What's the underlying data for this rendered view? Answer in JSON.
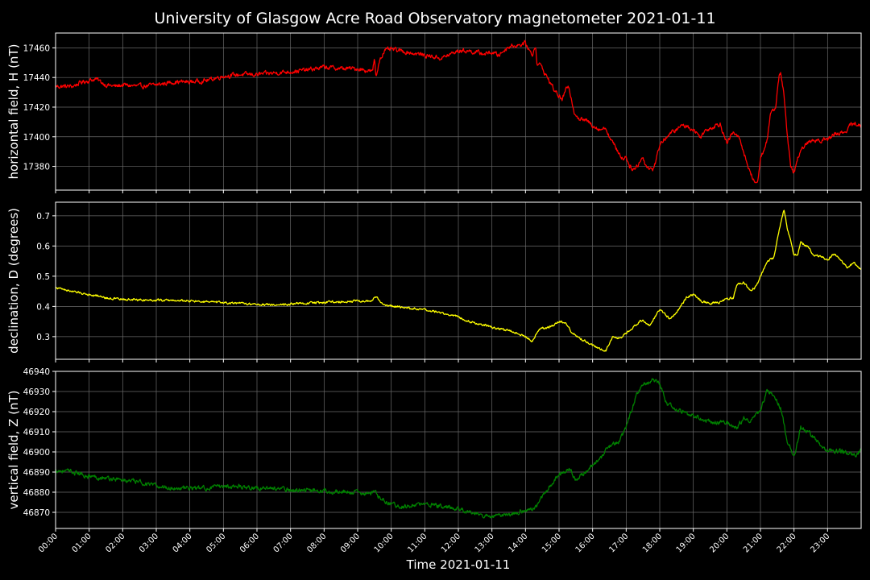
{
  "figure": {
    "title": "University of Glasgow Acre Road Observatory magnetometer 2021-01-11",
    "background": "#000000",
    "text_color": "#ffffff",
    "grid_color": "#6a6a6a"
  },
  "chart_data": [
    {
      "type": "line",
      "name": "horizontal",
      "ylabel": "horizontal field, H (nT)",
      "xlabel": "",
      "color": "#ff0000",
      "xlim": [
        0,
        24
      ],
      "ylim": [
        17364,
        17470
      ],
      "yticks": [
        17380,
        17400,
        17420,
        17440,
        17460
      ],
      "ytick_labels": [
        "17380",
        "17400",
        "17420",
        "17440",
        "17460"
      ],
      "noise": 1.2,
      "x": [
        0,
        0.3,
        0.5,
        0.8,
        1.0,
        1.2,
        1.5,
        1.8,
        2.0,
        2.5,
        3.0,
        3.5,
        4.0,
        4.5,
        5.0,
        5.5,
        6.0,
        6.5,
        7.0,
        7.5,
        8.0,
        8.5,
        9.0,
        9.45,
        9.5,
        9.55,
        9.65,
        9.8,
        10.0,
        10.5,
        11.0,
        11.5,
        12.0,
        12.3,
        12.5,
        12.8,
        13.0,
        13.2,
        13.5,
        13.8,
        14.0,
        14.2,
        14.3,
        14.35,
        14.4,
        14.5,
        14.7,
        14.9,
        15.1,
        15.2,
        15.3,
        15.45,
        15.6,
        15.8,
        16.0,
        16.2,
        16.4,
        16.5,
        16.7,
        16.9,
        17.0,
        17.1,
        17.25,
        17.4,
        17.5,
        17.6,
        17.8,
        17.9,
        18.0,
        18.2,
        18.5,
        18.7,
        19.0,
        19.2,
        19.4,
        19.6,
        19.8,
        20.0,
        20.1,
        20.2,
        20.4,
        20.6,
        20.8,
        20.9,
        21.0,
        21.2,
        21.3,
        21.45,
        21.55,
        21.6,
        21.7,
        21.8,
        21.9,
        22.0,
        22.1,
        22.3,
        22.5,
        22.7,
        23.0,
        23.2,
        23.5,
        23.7,
        23.9,
        24.0
      ],
      "values": [
        17434,
        17434,
        17434,
        17437,
        17438,
        17439,
        17435,
        17434,
        17435,
        17434,
        17435,
        17437,
        17437,
        17438,
        17441,
        17442,
        17442,
        17443,
        17444,
        17445,
        17447,
        17446,
        17446,
        17444,
        17453,
        17440,
        17452,
        17458,
        17459,
        17457,
        17455,
        17453,
        17458,
        17458,
        17457,
        17456,
        17457,
        17455,
        17461,
        17462,
        17463,
        17455,
        17462,
        17448,
        17450,
        17446,
        17438,
        17430,
        17425,
        17432,
        17433,
        17417,
        17412,
        17411,
        17408,
        17405,
        17406,
        17400,
        17392,
        17385,
        17387,
        17380,
        17378,
        17383,
        17386,
        17380,
        17378,
        17385,
        17395,
        17400,
        17405,
        17408,
        17405,
        17400,
        17405,
        17407,
        17409,
        17395,
        17400,
        17403,
        17398,
        17382,
        17370,
        17368,
        17385,
        17398,
        17415,
        17420,
        17440,
        17443,
        17430,
        17400,
        17380,
        17375,
        17385,
        17394,
        17397,
        17398,
        17398,
        17402,
        17403,
        17408,
        17409,
        17406
      ],
      "x_ticks": [
        "00:00",
        "01:00",
        "02:00",
        "03:00",
        "04:00",
        "05:00",
        "06:00",
        "07:00",
        "08:00",
        "09:00",
        "10:00",
        "11:00",
        "12:00",
        "13:00",
        "14:00",
        "15:00",
        "16:00",
        "17:00",
        "18:00",
        "19:00",
        "20:00",
        "21:00",
        "22:00",
        "23:00"
      ]
    },
    {
      "type": "line",
      "name": "declination",
      "ylabel": "declination, D (degrees)",
      "xlabel": "",
      "color": "#ffff00",
      "xlim": [
        0,
        24
      ],
      "ylim": [
        0.225,
        0.745
      ],
      "yticks": [
        0.3,
        0.4,
        0.5,
        0.6,
        0.7
      ],
      "ytick_labels": [
        "0.3",
        "0.4",
        "0.5",
        "0.6",
        "0.7"
      ],
      "noise": 0.003,
      "x": [
        0,
        0.3,
        0.6,
        1.0,
        1.3,
        1.5,
        2.0,
        2.5,
        3.0,
        3.5,
        4.0,
        4.5,
        5.0,
        5.5,
        6.0,
        6.5,
        7.0,
        7.5,
        8.0,
        8.5,
        9.0,
        9.4,
        9.55,
        9.7,
        10.0,
        10.5,
        11.0,
        11.5,
        12.0,
        12.3,
        12.5,
        12.8,
        13.0,
        13.3,
        13.6,
        13.8,
        14.0,
        14.2,
        14.4,
        14.6,
        14.8,
        15.0,
        15.2,
        15.4,
        15.6,
        15.8,
        16.0,
        16.2,
        16.4,
        16.6,
        16.8,
        17.0,
        17.2,
        17.4,
        17.5,
        17.7,
        18.0,
        18.3,
        18.5,
        18.8,
        19.0,
        19.2,
        19.5,
        19.8,
        20.0,
        20.2,
        20.3,
        20.5,
        20.7,
        20.9,
        21.0,
        21.2,
        21.4,
        21.55,
        21.7,
        21.8,
        22.0,
        22.1,
        22.2,
        22.4,
        22.6,
        22.8,
        23.0,
        23.2,
        23.4,
        23.6,
        23.8,
        24.0
      ],
      "values": [
        0.463,
        0.455,
        0.447,
        0.44,
        0.435,
        0.428,
        0.423,
        0.422,
        0.421,
        0.42,
        0.418,
        0.415,
        0.412,
        0.41,
        0.407,
        0.406,
        0.408,
        0.411,
        0.414,
        0.416,
        0.418,
        0.418,
        0.432,
        0.41,
        0.4,
        0.395,
        0.388,
        0.378,
        0.366,
        0.352,
        0.345,
        0.338,
        0.33,
        0.324,
        0.318,
        0.31,
        0.3,
        0.285,
        0.325,
        0.33,
        0.335,
        0.35,
        0.345,
        0.31,
        0.295,
        0.285,
        0.27,
        0.26,
        0.255,
        0.3,
        0.295,
        0.31,
        0.33,
        0.35,
        0.355,
        0.335,
        0.39,
        0.36,
        0.38,
        0.43,
        0.44,
        0.42,
        0.41,
        0.415,
        0.425,
        0.43,
        0.475,
        0.48,
        0.45,
        0.47,
        0.5,
        0.55,
        0.56,
        0.65,
        0.722,
        0.66,
        0.57,
        0.57,
        0.61,
        0.6,
        0.57,
        0.565,
        0.555,
        0.575,
        0.55,
        0.53,
        0.545,
        0.52
      ],
      "x_ticks": [
        "00:00",
        "01:00",
        "02:00",
        "03:00",
        "04:00",
        "05:00",
        "06:00",
        "07:00",
        "08:00",
        "09:00",
        "10:00",
        "11:00",
        "12:00",
        "13:00",
        "14:00",
        "15:00",
        "16:00",
        "17:00",
        "18:00",
        "19:00",
        "20:00",
        "21:00",
        "22:00",
        "23:00"
      ]
    },
    {
      "type": "line",
      "name": "vertical",
      "ylabel": "vertical field, Z (nT)",
      "xlabel": "Time 2021-01-11",
      "color": "#008000",
      "xlim": [
        0,
        24
      ],
      "ylim": [
        46862,
        46940
      ],
      "yticks": [
        46870,
        46880,
        46890,
        46900,
        46910,
        46920,
        46930,
        46940
      ],
      "ytick_labels": [
        "46870",
        "46880",
        "46890",
        "46900",
        "46910",
        "46920",
        "46930",
        "46940"
      ],
      "noise": 0.9,
      "x": [
        0,
        0.5,
        1.0,
        1.5,
        2.0,
        2.5,
        3.0,
        3.5,
        4.0,
        4.5,
        5.0,
        5.5,
        6.0,
        6.5,
        7.0,
        7.5,
        8.0,
        8.5,
        9.0,
        9.3,
        9.5,
        9.7,
        10.0,
        10.3,
        10.5,
        11.0,
        11.5,
        12.0,
        12.3,
        12.5,
        13.0,
        13.5,
        14.0,
        14.3,
        14.5,
        14.8,
        15.0,
        15.3,
        15.5,
        16.0,
        16.3,
        16.5,
        16.8,
        17.0,
        17.3,
        17.5,
        17.8,
        18.0,
        18.2,
        18.5,
        19.0,
        19.5,
        20.0,
        20.3,
        20.5,
        20.7,
        21.0,
        21.2,
        21.4,
        21.6,
        21.8,
        22.0,
        22.2,
        22.4,
        22.6,
        22.8,
        23.0,
        23.5,
        23.8,
        24.0
      ],
      "values": [
        46891,
        46890,
        46888,
        46887,
        46886,
        46885,
        46883,
        46882,
        46882,
        46882,
        46883,
        46883,
        46882,
        46882,
        46881,
        46881,
        46881,
        46880,
        46880,
        46879,
        46880,
        46877,
        46874,
        46873,
        46873,
        46874,
        46873,
        46872,
        46870,
        46869,
        46868,
        46869,
        46871,
        46872,
        46878,
        46885,
        46889,
        46892,
        46886,
        46893,
        46898,
        46903,
        46905,
        46912,
        46928,
        46934,
        46936,
        46934,
        46924,
        46921,
        46918,
        46915,
        46915,
        46912,
        46917,
        46916,
        46920,
        46931,
        46928,
        46922,
        46905,
        46898,
        46912,
        46910,
        46907,
        46903,
        46901,
        46900,
        46898,
        46901
      ],
      "x_ticks": [
        "00:00",
        "01:00",
        "02:00",
        "03:00",
        "04:00",
        "05:00",
        "06:00",
        "07:00",
        "08:00",
        "09:00",
        "10:00",
        "11:00",
        "12:00",
        "13:00",
        "14:00",
        "15:00",
        "16:00",
        "17:00",
        "18:00",
        "19:00",
        "20:00",
        "21:00",
        "22:00",
        "23:00"
      ]
    }
  ]
}
